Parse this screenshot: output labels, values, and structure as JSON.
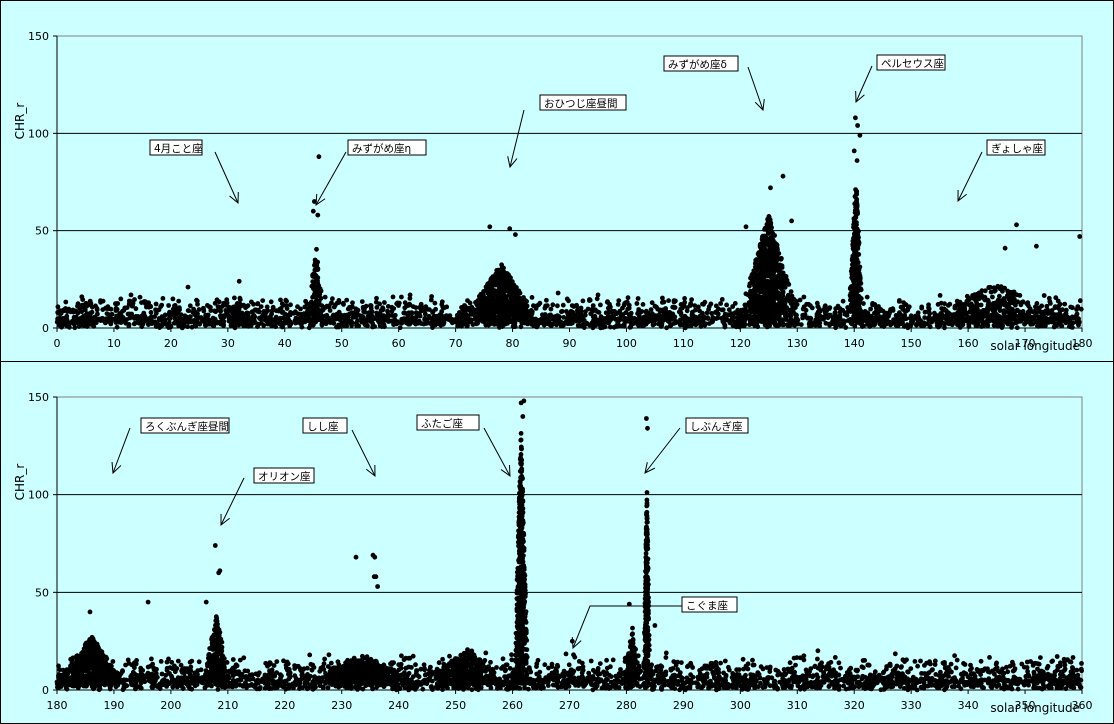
{
  "chart_data": [
    {
      "type": "scatter",
      "xlabel": "solar longitude",
      "ylabel": "CHR_r",
      "xlim": [
        0,
        180
      ],
      "ylim": [
        0,
        150
      ],
      "x_ticks": [
        "0",
        "10",
        "20",
        "30",
        "40",
        "50",
        "60",
        "70",
        "80",
        "90",
        "100",
        "110",
        "120",
        "130",
        "140",
        "150",
        "160",
        "170",
        "180"
      ],
      "y_ticks": [
        "0",
        "50",
        "100",
        "150"
      ],
      "gridlines_y": [
        50,
        100
      ],
      "baseline": {
        "from": 0,
        "to": 180,
        "level": 5,
        "spread": 7
      },
      "clusters": [
        {
          "center": 45.5,
          "width": 1.6,
          "height": 40,
          "count": 90
        },
        {
          "center": 32,
          "width": 1.2,
          "height": 14,
          "count": 25
        },
        {
          "center": 78,
          "width": 7,
          "height": 30,
          "count": 500
        },
        {
          "center": 125,
          "width": 5.5,
          "height": 55,
          "count": 650
        },
        {
          "center": 140.3,
          "width": 1.3,
          "height": 75,
          "count": 280
        },
        {
          "center": 165,
          "width": 14,
          "height": 20,
          "count": 230
        }
      ],
      "series": [
        {
          "points": [
            [
              46,
              88
            ],
            [
              140.2,
              108
            ],
            [
              140.6,
              104
            ],
            [
              141,
              99
            ],
            [
              140,
              91
            ],
            [
              140.5,
              86
            ],
            [
              127.5,
              78
            ],
            [
              125.3,
              72
            ],
            [
              45.2,
              65
            ],
            [
              45,
              60
            ],
            [
              45.8,
              58
            ],
            [
              168.5,
              53
            ],
            [
              166.5,
              41
            ],
            [
              179.6,
              47
            ],
            [
              172,
              42
            ],
            [
              79.5,
              51
            ],
            [
              76,
              52
            ],
            [
              80.5,
              48
            ],
            [
              121,
              52
            ],
            [
              129,
              55
            ],
            [
              23,
              21
            ],
            [
              32,
              24
            ],
            [
              13,
              17
            ],
            [
              59,
              16
            ],
            [
              62,
              17
            ],
            [
              88,
              18
            ],
            [
              95,
              17
            ]
          ]
        }
      ],
      "annotations": [
        {
          "text": "4月こと座",
          "x": 32
        },
        {
          "text": "みずがめ座η",
          "x": 45.5
        },
        {
          "text": "おひつじ座昼間",
          "x": 79.5
        },
        {
          "text": "みずがめ座δ",
          "x": 124
        },
        {
          "text": "ペルセウス座",
          "x": 140
        },
        {
          "text": "ぎょしゃ座",
          "x": 158.5
        }
      ]
    },
    {
      "type": "scatter",
      "xlabel": "solar longitude",
      "ylabel": "CHR_r",
      "xlim": [
        180,
        360
      ],
      "ylim": [
        0,
        150
      ],
      "x_ticks": [
        "180",
        "190",
        "200",
        "210",
        "220",
        "230",
        "240",
        "250",
        "260",
        "270",
        "280",
        "290",
        "300",
        "310",
        "320",
        "330",
        "340",
        "350",
        "360"
      ],
      "y_ticks": [
        "0",
        "50",
        "100",
        "150"
      ],
      "gridlines_y": [
        50,
        100
      ],
      "baseline": {
        "from": 180,
        "to": 360,
        "level": 5,
        "spread": 8
      },
      "clusters": [
        {
          "center": 186,
          "width": 6,
          "height": 25,
          "count": 420
        },
        {
          "center": 208,
          "width": 2.5,
          "height": 35,
          "count": 180
        },
        {
          "center": 234,
          "width": 10,
          "height": 15,
          "count": 350
        },
        {
          "center": 252,
          "width": 8,
          "height": 18,
          "count": 300
        },
        {
          "center": 261.5,
          "width": 1.2,
          "height": 130,
          "count": 520
        },
        {
          "center": 283.6,
          "width": 0.6,
          "height": 100,
          "count": 260
        },
        {
          "center": 281,
          "width": 1.5,
          "height": 30,
          "count": 80
        }
      ],
      "series": [
        {
          "points": [
            [
              262,
              148
            ],
            [
              261.5,
              147
            ],
            [
              283.5,
              139
            ],
            [
              283.7,
              134
            ],
            [
              261.8,
              140
            ],
            [
              207.8,
              74
            ],
            [
              208.6,
              61
            ],
            [
              208.4,
              60
            ],
            [
              232.5,
              68
            ],
            [
              235.5,
              69
            ],
            [
              235.8,
              68
            ],
            [
              235.7,
              58
            ],
            [
              236,
              58
            ],
            [
              236.3,
              53
            ],
            [
              196,
              45
            ],
            [
              185.8,
              40
            ],
            [
              206.2,
              45
            ],
            [
              270.5,
              25
            ],
            [
              270.7,
              18
            ],
            [
              280.5,
              44
            ],
            [
              285,
              33
            ],
            [
              287,
              19
            ]
          ]
        }
      ],
      "annotations": [
        {
          "text": "ろくぶんぎ座昼間",
          "x": 190
        },
        {
          "text": "オリオン座",
          "x": 208.5
        },
        {
          "text": "しし座",
          "x": 236
        },
        {
          "text": "ふたご座",
          "x": 260.5
        },
        {
          "text": "しぶんぎ座",
          "x": 283.5
        },
        {
          "text": "こぐま座",
          "x": 270.5
        }
      ]
    }
  ]
}
